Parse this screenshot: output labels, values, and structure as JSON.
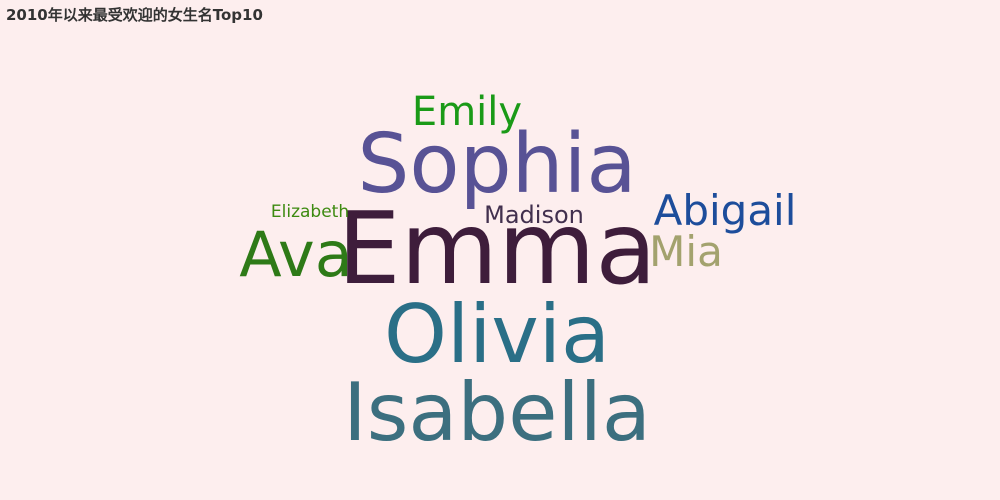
{
  "title": "2010年以来最受欢迎的女生名Top10",
  "chart_data": {
    "type": "wordcloud",
    "title": "2010年以来最受欢迎的女生名Top10",
    "words": [
      {
        "text": "Emma",
        "color": "#3e1d3b"
      },
      {
        "text": "Sophia",
        "color": "#585295"
      },
      {
        "text": "Olivia",
        "color": "#2a6f87"
      },
      {
        "text": "Isabella",
        "color": "#3c6f7f"
      },
      {
        "text": "Ava",
        "color": "#2e7a17"
      },
      {
        "text": "Abigail",
        "color": "#1d4d9b"
      },
      {
        "text": "Emily",
        "color": "#1a9a17"
      },
      {
        "text": "Mia",
        "color": "#a3a26e"
      },
      {
        "text": "Madison",
        "color": "#42304e"
      },
      {
        "text": "Elizabeth",
        "color": "#3d8a10"
      }
    ]
  }
}
